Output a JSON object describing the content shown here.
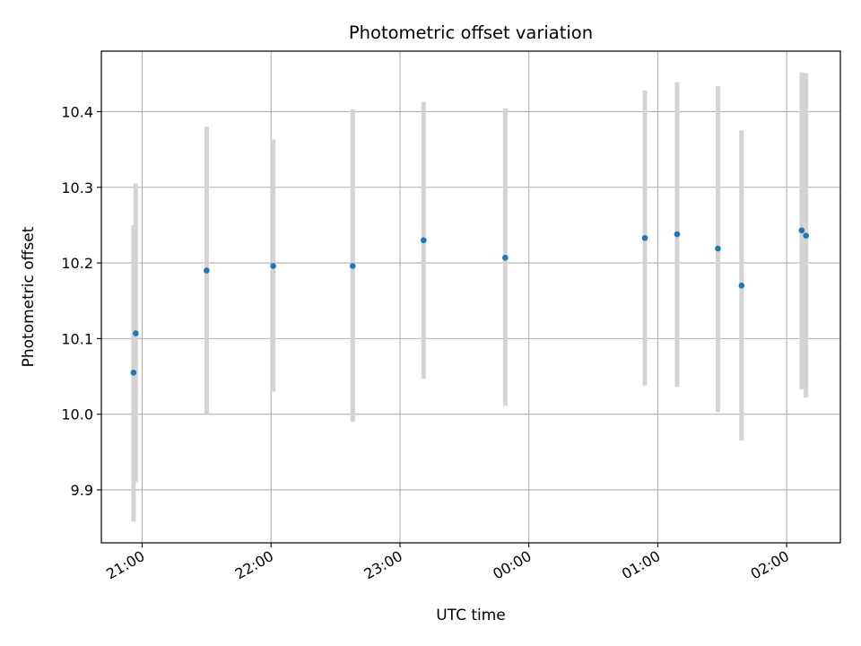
{
  "chart_data": {
    "type": "scatter",
    "title": "Photometric offset variation",
    "xlabel": "UTC time",
    "ylabel": "Photometric offset",
    "x_ticks": [
      "21:00",
      "22:00",
      "23:00",
      "00:00",
      "01:00",
      "02:00"
    ],
    "y_ticks": [
      "9.9",
      "10.0",
      "10.1",
      "10.2",
      "10.3",
      "10.4"
    ],
    "xlim": [
      "20:41",
      "02:25"
    ],
    "ylim": [
      9.83,
      10.48
    ],
    "grid": true,
    "legend": "none",
    "marker_color": "#1f77b4",
    "errorbar_color": "#d3d3d3",
    "points": [
      {
        "time": "20:56",
        "y": 10.055,
        "low": 9.858,
        "high": 10.25
      },
      {
        "time": "20:57",
        "y": 10.107,
        "low": 9.91,
        "high": 10.305
      },
      {
        "time": "21:30",
        "y": 10.19,
        "low": 10.0,
        "high": 10.38
      },
      {
        "time": "22:01",
        "y": 10.196,
        "low": 10.03,
        "high": 10.363
      },
      {
        "time": "22:38",
        "y": 10.196,
        "low": 9.99,
        "high": 10.403
      },
      {
        "time": "23:11",
        "y": 10.23,
        "low": 10.047,
        "high": 10.413
      },
      {
        "time": "23:49",
        "y": 10.207,
        "low": 10.011,
        "high": 10.404
      },
      {
        "time": "00:54",
        "y": 10.233,
        "low": 10.038,
        "high": 10.428
      },
      {
        "time": "01:09",
        "y": 10.238,
        "low": 10.036,
        "high": 10.439
      },
      {
        "time": "01:28",
        "y": 10.219,
        "low": 10.003,
        "high": 10.434
      },
      {
        "time": "01:39",
        "y": 10.17,
        "low": 9.965,
        "high": 10.375
      },
      {
        "time": "02:07",
        "y": 10.243,
        "low": 10.033,
        "high": 10.452
      },
      {
        "time": "02:09",
        "y": 10.236,
        "low": 10.022,
        "high": 10.451
      }
    ]
  }
}
